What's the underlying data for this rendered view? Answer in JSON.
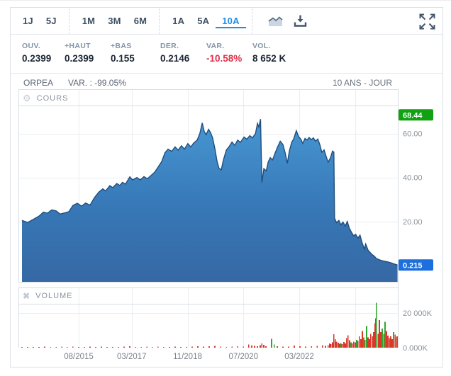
{
  "toolbar": {
    "ranges": [
      "1J",
      "5J",
      "1M",
      "3M",
      "6M",
      "1A",
      "5A",
      "10A"
    ],
    "selected_range": "10A",
    "icons": [
      "area-chart",
      "download",
      "expand"
    ]
  },
  "stats": {
    "items": [
      {
        "label": "OUV.",
        "value": "0.2399"
      },
      {
        "label": "+HAUT",
        "value": "0.2399"
      },
      {
        "label": "+BAS",
        "value": "0.155"
      },
      {
        "label": "DER.",
        "value": "0.2146"
      },
      {
        "label": "VAR.",
        "value": "-10.58%",
        "negative": true
      },
      {
        "label": "VOL.",
        "value": "8 652 K"
      }
    ]
  },
  "chart_header": {
    "symbol": "ORPEA",
    "variation": "VAR. : -99.05%",
    "period": "10 ANS - JOUR"
  },
  "colors": {
    "accent_blue": "#1f8ee8",
    "negative_red": "#e0314a",
    "area_stroke": "#1f4e7d",
    "area_fill_top": "#3f93d1",
    "area_fill_mid": "#2f72b4",
    "area_fill_bottom": "#2e62a0",
    "volume_red": "#d93829",
    "volume_green": "#33a532",
    "high_badge_green": "#12a112",
    "last_badge_blue": "#1c6fdd",
    "grid": "#ebedf0",
    "pane_border": "#d8dde3"
  },
  "chart_data": {
    "type": "area",
    "title": "ORPEA 10 ANS - JOUR",
    "x_unit": "decimal_year",
    "legend": "none",
    "grid": true,
    "x_ticks": [
      {
        "t": 2015.583,
        "label": "08/2015"
      },
      {
        "t": 2017.167,
        "label": "03/2017"
      },
      {
        "t": 2018.833,
        "label": "11/2018"
      },
      {
        "t": 2020.5,
        "label": "07/2020"
      },
      {
        "t": 2022.167,
        "label": "03/2022"
      },
      {
        "t": 2023.833,
        "label": ""
      }
    ],
    "price": {
      "name": "COURS",
      "ylim": [
        0,
        70
      ],
      "y_ticks": [
        {
          "v": 60,
          "label": "60.00"
        },
        {
          "v": 40,
          "label": "40.00"
        },
        {
          "v": 20,
          "label": "20.00"
        }
      ],
      "high_badge": {
        "v": 68.44,
        "label": "68.44",
        "color": "#12a112"
      },
      "last_badge": {
        "v": 0.215,
        "label": "0.215",
        "color": "#1c6fdd"
      },
      "points": [
        [
          2013.89,
          20.5
        ],
        [
          2014.06,
          19.6
        ],
        [
          2014.23,
          21.0
        ],
        [
          2014.4,
          22.5
        ],
        [
          2014.53,
          24.3
        ],
        [
          2014.65,
          23.8
        ],
        [
          2014.78,
          25.3
        ],
        [
          2014.91,
          24.8
        ],
        [
          2015.03,
          23.4
        ],
        [
          2015.16,
          23.9
        ],
        [
          2015.29,
          24.5
        ],
        [
          2015.41,
          27.3
        ],
        [
          2015.54,
          28.3
        ],
        [
          2015.67,
          27.0
        ],
        [
          2015.79,
          28.4
        ],
        [
          2015.92,
          27.4
        ],
        [
          2016.05,
          30.8
        ],
        [
          2016.18,
          33.3
        ],
        [
          2016.3,
          34.8
        ],
        [
          2016.39,
          33.9
        ],
        [
          2016.51,
          36.3
        ],
        [
          2016.6,
          35.4
        ],
        [
          2016.72,
          37.3
        ],
        [
          2016.81,
          36.4
        ],
        [
          2016.89,
          37.8
        ],
        [
          2016.98,
          37.0
        ],
        [
          2017.11,
          40.3
        ],
        [
          2017.19,
          38.9
        ],
        [
          2017.32,
          40.0
        ],
        [
          2017.42,
          38.9
        ],
        [
          2017.53,
          40.4
        ],
        [
          2017.63,
          39.4
        ],
        [
          2017.74,
          40.9
        ],
        [
          2017.85,
          42.4
        ],
        [
          2017.95,
          44.7
        ],
        [
          2018.06,
          47.2
        ],
        [
          2018.16,
          51.3
        ],
        [
          2018.25,
          52.9
        ],
        [
          2018.36,
          51.9
        ],
        [
          2018.46,
          53.9
        ],
        [
          2018.55,
          52.4
        ],
        [
          2018.65,
          54.4
        ],
        [
          2018.74,
          52.9
        ],
        [
          2018.84,
          55.4
        ],
        [
          2018.93,
          53.9
        ],
        [
          2019.01,
          55.6
        ],
        [
          2019.12,
          57.0
        ],
        [
          2019.2,
          60.1
        ],
        [
          2019.27,
          64.8
        ],
        [
          2019.33,
          60.9
        ],
        [
          2019.39,
          59.5
        ],
        [
          2019.46,
          61.9
        ],
        [
          2019.52,
          60.4
        ],
        [
          2019.58,
          58.0
        ],
        [
          2019.65,
          53.0
        ],
        [
          2019.71,
          47.5
        ],
        [
          2019.77,
          44.2
        ],
        [
          2019.84,
          43.5
        ],
        [
          2019.9,
          47.8
        ],
        [
          2019.99,
          52.5
        ],
        [
          2020.07,
          54.0
        ],
        [
          2020.16,
          56.1
        ],
        [
          2020.24,
          54.6
        ],
        [
          2020.33,
          57.0
        ],
        [
          2020.41,
          56.0
        ],
        [
          2020.52,
          58.4
        ],
        [
          2020.6,
          57.4
        ],
        [
          2020.69,
          59.0
        ],
        [
          2020.77,
          58.0
        ],
        [
          2020.86,
          60.0
        ],
        [
          2020.92,
          64.6
        ],
        [
          2020.96,
          62.9
        ],
        [
          2021.01,
          66.5
        ],
        [
          2021.05,
          37.8
        ],
        [
          2021.11,
          44.0
        ],
        [
          2021.18,
          43.0
        ],
        [
          2021.24,
          47.0
        ],
        [
          2021.3,
          49.0
        ],
        [
          2021.37,
          48.0
        ],
        [
          2021.43,
          50.5
        ],
        [
          2021.51,
          53.5
        ],
        [
          2021.6,
          56.5
        ],
        [
          2021.68,
          55.0
        ],
        [
          2021.75,
          51.0
        ],
        [
          2021.81,
          46.5
        ],
        [
          2021.87,
          52.0
        ],
        [
          2021.94,
          56.0
        ],
        [
          2022.0,
          57.5
        ],
        [
          2022.08,
          61.3
        ],
        [
          2022.15,
          58.5
        ],
        [
          2022.21,
          57.5
        ],
        [
          2022.27,
          55.5
        ],
        [
          2022.34,
          57.8
        ],
        [
          2022.4,
          57.0
        ],
        [
          2022.46,
          58.2
        ],
        [
          2022.53,
          57.2
        ],
        [
          2022.59,
          58.0
        ],
        [
          2022.65,
          56.5
        ],
        [
          2022.72,
          57.5
        ],
        [
          2022.78,
          55.0
        ],
        [
          2022.84,
          51.5
        ],
        [
          2022.91,
          52.5
        ],
        [
          2022.97,
          49.5
        ],
        [
          2023.03,
          47.0
        ],
        [
          2023.1,
          49.0
        ],
        [
          2023.16,
          52.0
        ],
        [
          2023.2,
          51.5
        ],
        [
          2023.22,
          21.5
        ],
        [
          2023.28,
          19.5
        ],
        [
          2023.35,
          20.5
        ],
        [
          2023.41,
          18.5
        ],
        [
          2023.47,
          19.8
        ],
        [
          2023.54,
          18.0
        ],
        [
          2023.6,
          20.0
        ],
        [
          2023.66,
          17.0
        ],
        [
          2023.73,
          15.0
        ],
        [
          2023.79,
          13.5
        ],
        [
          2023.85,
          14.2
        ],
        [
          2023.92,
          12.5
        ],
        [
          2023.98,
          13.8
        ],
        [
          2024.04,
          10.5
        ],
        [
          2024.11,
          7.5
        ],
        [
          2024.15,
          9.8
        ],
        [
          2024.22,
          7.0
        ],
        [
          2024.28,
          6.0
        ],
        [
          2024.34,
          5.0
        ],
        [
          2024.41,
          4.2
        ],
        [
          2024.47,
          3.2
        ],
        [
          2024.56,
          2.6
        ],
        [
          2024.64,
          2.2
        ],
        [
          2024.77,
          1.8
        ],
        [
          2024.9,
          1.3
        ],
        [
          2025.02,
          0.6
        ],
        [
          2025.1,
          0.215
        ]
      ]
    },
    "volume": {
      "name": "VOLUME",
      "unit": "K",
      "ylim_k": [
        0,
        34000
      ],
      "y_ticks": [
        {
          "v": 20000,
          "label": "20 000K"
        },
        {
          "v": 0,
          "label": "0.000K"
        }
      ],
      "bars": [
        [
          2013.89,
          400,
          "r"
        ],
        [
          2014.06,
          300,
          "r"
        ],
        [
          2014.23,
          500,
          "r"
        ],
        [
          2014.4,
          350,
          "r"
        ],
        [
          2014.57,
          600,
          "r"
        ],
        [
          2014.74,
          400,
          "g"
        ],
        [
          2014.91,
          350,
          "r"
        ],
        [
          2015.08,
          550,
          "r"
        ],
        [
          2015.24,
          400,
          "r"
        ],
        [
          2015.41,
          700,
          "r"
        ],
        [
          2015.58,
          450,
          "r"
        ],
        [
          2015.75,
          380,
          "g"
        ],
        [
          2015.92,
          520,
          "r"
        ],
        [
          2016.09,
          420,
          "r"
        ],
        [
          2016.26,
          650,
          "r"
        ],
        [
          2016.43,
          380,
          "r"
        ],
        [
          2016.6,
          480,
          "r"
        ],
        [
          2016.77,
          420,
          "g"
        ],
        [
          2016.94,
          560,
          "r"
        ],
        [
          2017.11,
          800,
          "r"
        ],
        [
          2017.28,
          450,
          "r"
        ],
        [
          2017.45,
          380,
          "r"
        ],
        [
          2017.62,
          520,
          "r"
        ],
        [
          2017.78,
          430,
          "g"
        ],
        [
          2017.95,
          600,
          "r"
        ],
        [
          2018.12,
          500,
          "r"
        ],
        [
          2018.29,
          420,
          "r"
        ],
        [
          2018.46,
          680,
          "r"
        ],
        [
          2018.63,
          450,
          "r"
        ],
        [
          2018.8,
          380,
          "g"
        ],
        [
          2018.97,
          550,
          "r"
        ],
        [
          2019.14,
          900,
          "r"
        ],
        [
          2019.31,
          600,
          "r"
        ],
        [
          2019.48,
          750,
          "r"
        ],
        [
          2019.65,
          1100,
          "r"
        ],
        [
          2019.82,
          600,
          "r"
        ],
        [
          2019.99,
          500,
          "g"
        ],
        [
          2020.16,
          700,
          "r"
        ],
        [
          2020.33,
          900,
          "r"
        ],
        [
          2020.5,
          650,
          "r"
        ],
        [
          2020.66,
          1800,
          "r"
        ],
        [
          2020.75,
          1300,
          "r"
        ],
        [
          2020.83,
          1000,
          "r"
        ],
        [
          2020.92,
          800,
          "r"
        ],
        [
          2021.0,
          1500,
          "r"
        ],
        [
          2021.05,
          2400,
          "r"
        ],
        [
          2021.11,
          1600,
          "r"
        ],
        [
          2021.17,
          900,
          "r"
        ],
        [
          2021.34,
          5200,
          "g"
        ],
        [
          2021.42,
          1800,
          "g"
        ],
        [
          2021.51,
          800,
          "r"
        ],
        [
          2021.68,
          600,
          "r"
        ],
        [
          2021.85,
          700,
          "r"
        ],
        [
          2022.02,
          1200,
          "r"
        ],
        [
          2022.19,
          900,
          "r"
        ],
        [
          2022.36,
          700,
          "r"
        ],
        [
          2022.53,
          800,
          "r"
        ],
        [
          2022.7,
          1000,
          "r"
        ],
        [
          2022.86,
          1400,
          "r"
        ],
        [
          2022.95,
          1100,
          "r"
        ],
        [
          2023.03,
          1500,
          "r"
        ],
        [
          2023.07,
          2500,
          "r"
        ],
        [
          2023.11,
          2000,
          "r"
        ],
        [
          2023.16,
          3000,
          "r"
        ],
        [
          2023.2,
          7800,
          "r"
        ],
        [
          2023.24,
          5000,
          "r"
        ],
        [
          2023.28,
          3500,
          "r"
        ],
        [
          2023.33,
          2800,
          "r"
        ],
        [
          2023.37,
          2200,
          "r"
        ],
        [
          2023.41,
          2600,
          "g"
        ],
        [
          2023.45,
          2000,
          "r"
        ],
        [
          2023.5,
          3200,
          "r"
        ],
        [
          2023.54,
          2400,
          "r"
        ],
        [
          2023.58,
          5500,
          "r"
        ],
        [
          2023.62,
          7200,
          "r"
        ],
        [
          2023.67,
          4200,
          "r"
        ],
        [
          2023.71,
          3000,
          "g"
        ],
        [
          2023.75,
          2500,
          "r"
        ],
        [
          2023.79,
          3500,
          "r"
        ],
        [
          2023.84,
          3000,
          "r"
        ],
        [
          2023.88,
          4500,
          "g"
        ],
        [
          2023.92,
          3800,
          "r"
        ],
        [
          2023.96,
          6500,
          "r"
        ],
        [
          2024.01,
          5000,
          "r"
        ],
        [
          2024.05,
          9500,
          "r"
        ],
        [
          2024.09,
          6000,
          "g"
        ],
        [
          2024.13,
          4500,
          "r"
        ],
        [
          2024.18,
          12500,
          "g"
        ],
        [
          2024.22,
          6000,
          "r"
        ],
        [
          2024.26,
          5000,
          "r"
        ],
        [
          2024.3,
          8000,
          "r"
        ],
        [
          2024.35,
          6500,
          "r"
        ],
        [
          2024.39,
          9000,
          "r"
        ],
        [
          2024.43,
          14000,
          "r"
        ],
        [
          2024.45,
          17000,
          "r"
        ],
        [
          2024.47,
          26000,
          "g"
        ],
        [
          2024.52,
          8000,
          "r"
        ],
        [
          2024.56,
          16000,
          "r"
        ],
        [
          2024.6,
          9000,
          "r"
        ],
        [
          2024.64,
          11000,
          "g"
        ],
        [
          2024.69,
          8000,
          "r"
        ],
        [
          2024.73,
          15000,
          "g"
        ],
        [
          2024.77,
          9500,
          "r"
        ],
        [
          2024.81,
          7000,
          "r"
        ],
        [
          2024.86,
          5500,
          "r"
        ],
        [
          2024.9,
          6500,
          "r"
        ],
        [
          2024.94,
          5000,
          "r"
        ],
        [
          2024.98,
          9000,
          "g"
        ],
        [
          2025.03,
          7500,
          "r"
        ],
        [
          2025.07,
          6000,
          "r"
        ],
        [
          2025.09,
          6500,
          "r"
        ]
      ]
    }
  }
}
